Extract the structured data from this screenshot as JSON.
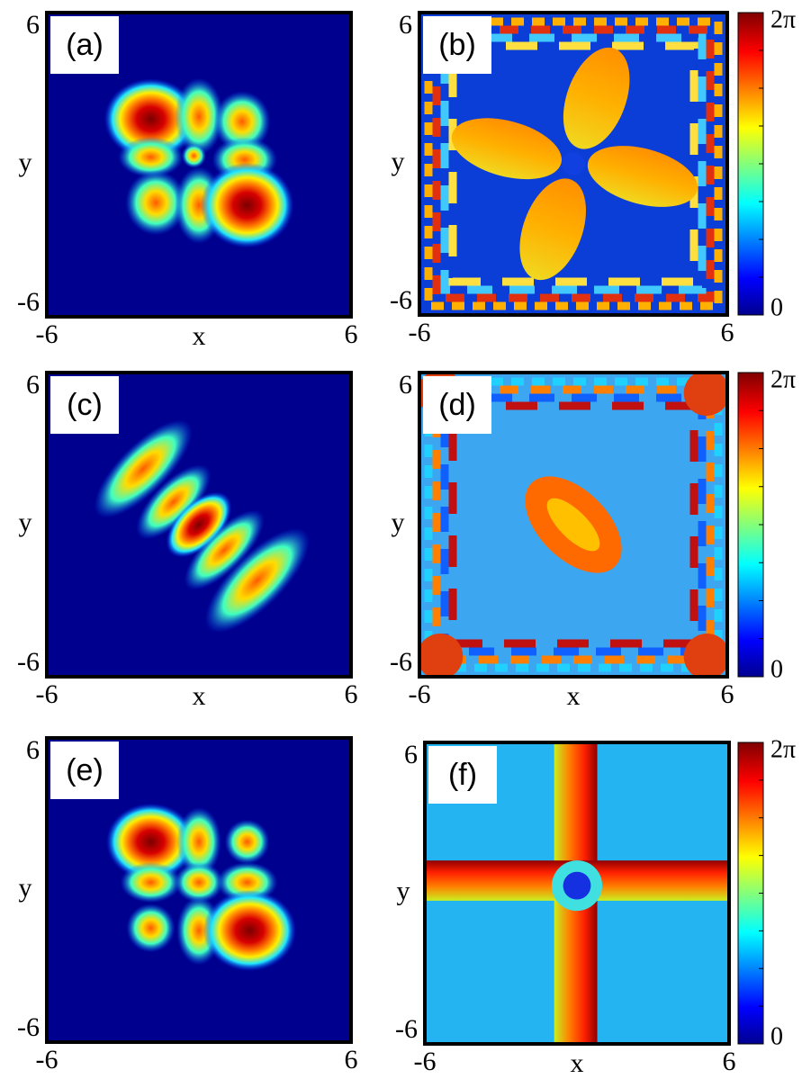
{
  "chart_data": [
    {
      "type": "heatmap",
      "panel_label": "(a)",
      "x_label": "x",
      "y_label": "y",
      "xlim": [
        -6,
        6
      ],
      "ylim": [
        -6,
        6
      ],
      "xticks": [
        -6,
        6
      ],
      "yticks": [
        -6,
        6
      ]
    },
    {
      "type": "phase",
      "panel_label": "(b)",
      "y_label": "y",
      "xlim": [
        -6,
        6
      ],
      "ylim": [
        -6,
        6
      ],
      "xticks": [
        -6,
        6
      ],
      "yticks": [
        -6,
        6
      ],
      "colorbar": {
        "lim": [
          0,
          6.283185307179586
        ],
        "ticks": [
          0,
          {
            "value": 6.283185307179586,
            "label": "2π"
          }
        ]
      }
    },
    {
      "type": "heatmap",
      "panel_label": "(c)",
      "x_label": "x",
      "y_label": "y",
      "xlim": [
        -6,
        6
      ],
      "ylim": [
        -6,
        6
      ],
      "xticks": [
        -6,
        6
      ],
      "yticks": [
        -6,
        6
      ]
    },
    {
      "type": "phase",
      "panel_label": "(d)",
      "x_label": "x",
      "y_label": "y",
      "xlim": [
        -6,
        6
      ],
      "ylim": [
        -6,
        6
      ],
      "xticks": [
        -6,
        6
      ],
      "yticks": [
        -6,
        6
      ],
      "colorbar": {
        "lim": [
          0,
          6.283185307179586
        ],
        "ticks": [
          0,
          {
            "value": 6.283185307179586,
            "label": "2π"
          }
        ]
      }
    },
    {
      "type": "heatmap",
      "panel_label": "(e)",
      "y_label": "y",
      "xlim": [
        -6,
        6
      ],
      "ylim": [
        -6,
        6
      ],
      "xticks": [
        -6,
        6
      ],
      "yticks": [
        -6,
        6
      ]
    },
    {
      "type": "phase",
      "panel_label": "(f)",
      "x_label": "x",
      "y_label": "y",
      "xlim": [
        -6,
        6
      ],
      "ylim": [
        -6,
        6
      ],
      "xticks": [
        -6,
        6
      ],
      "yticks": [
        -6,
        6
      ],
      "colorbar": {
        "lim": [
          0,
          6.283185307179586
        ],
        "ticks": [
          0,
          {
            "value": 6.283185307179586,
            "label": "2π"
          }
        ]
      }
    }
  ]
}
